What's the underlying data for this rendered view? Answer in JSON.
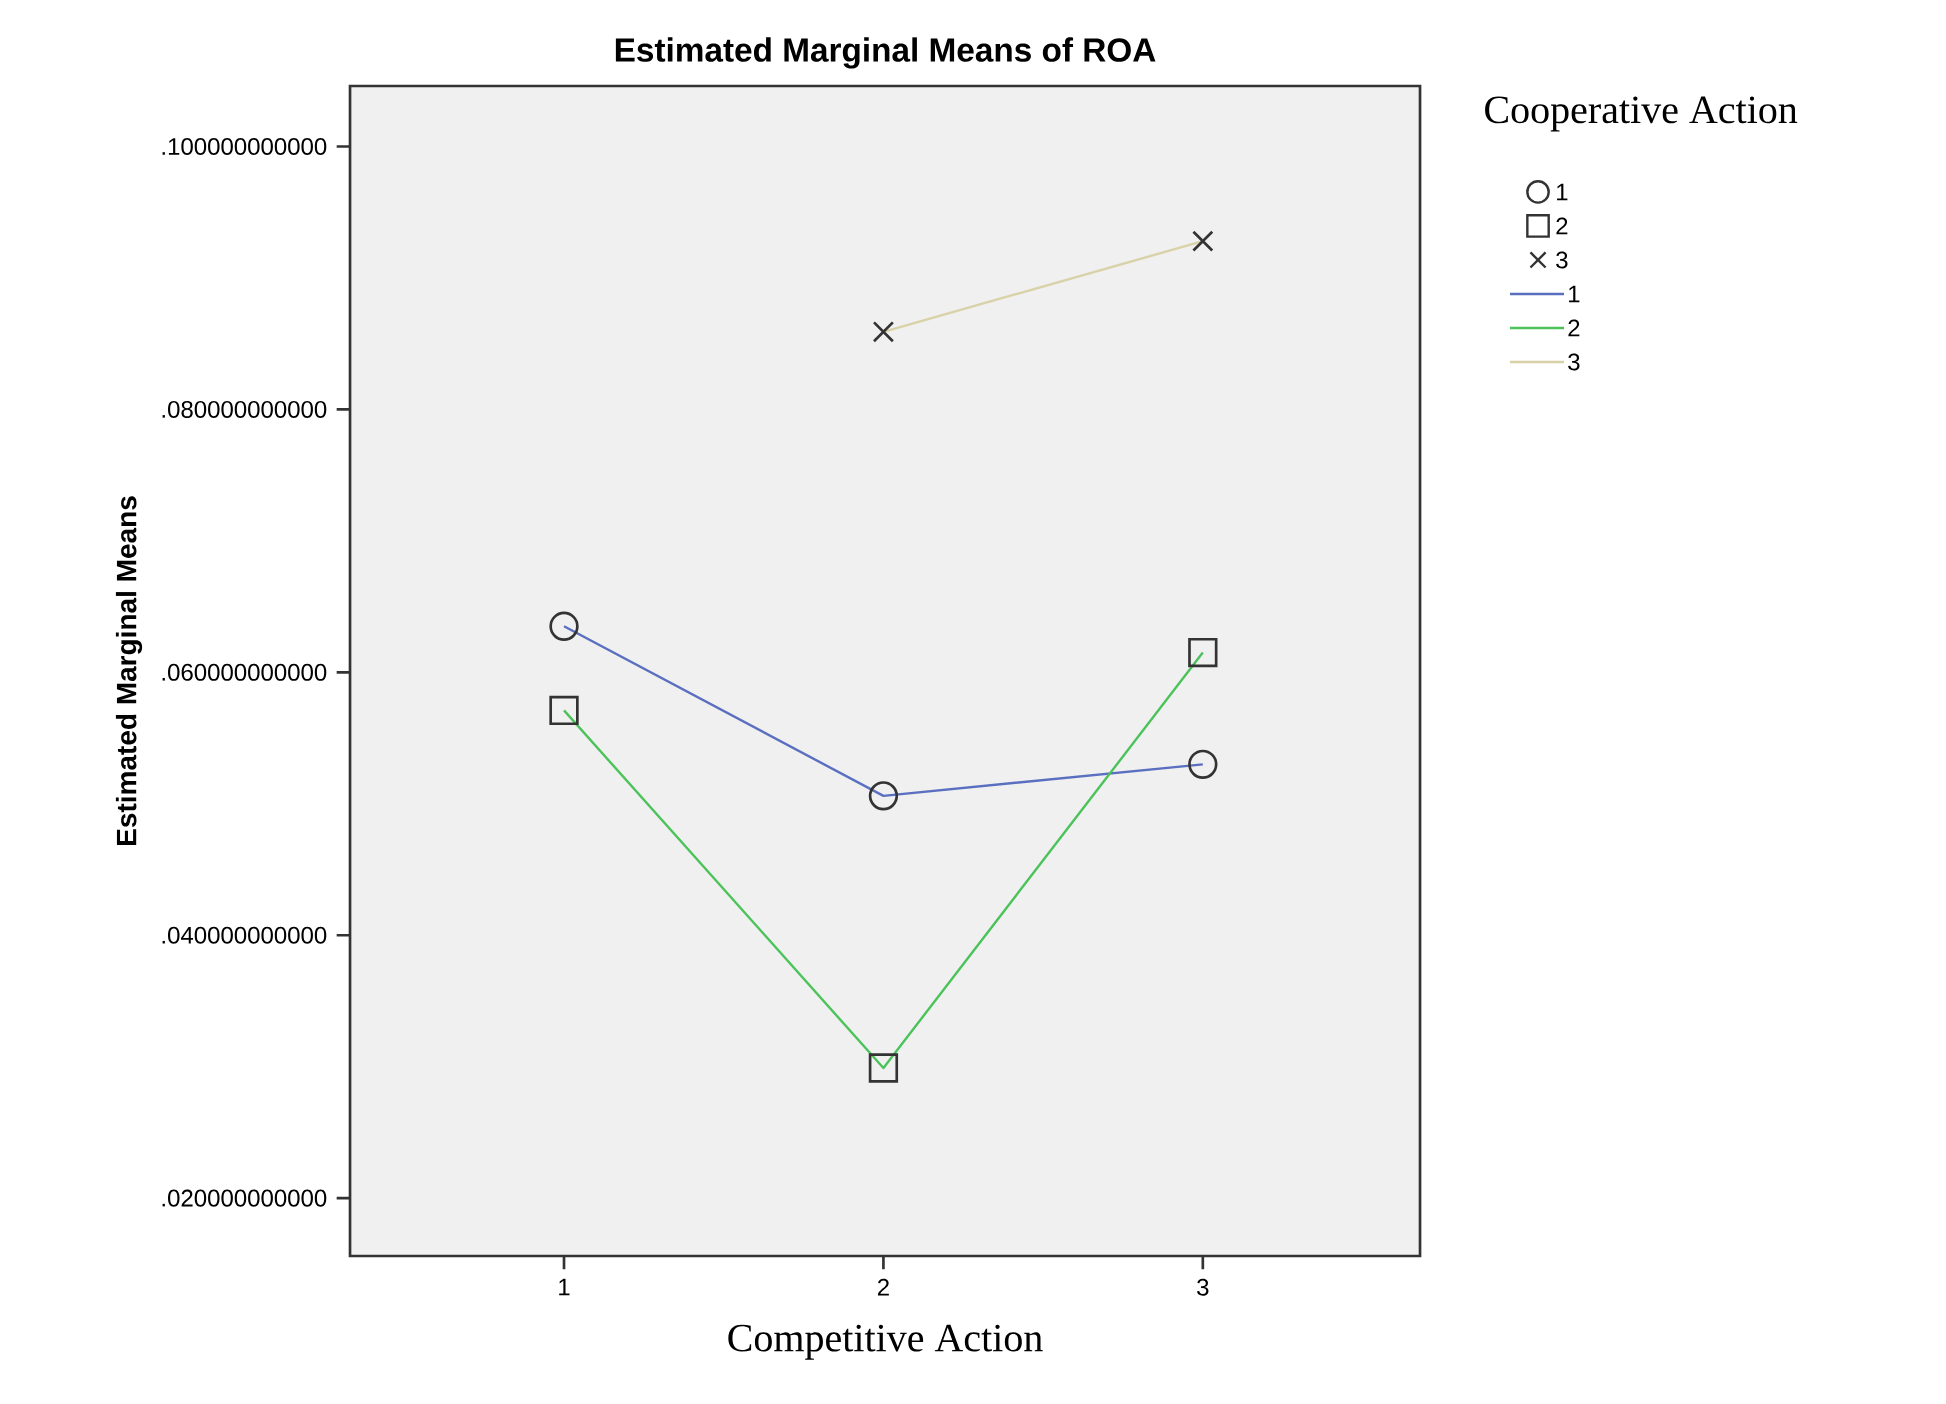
{
  "chart_data": {
    "type": "line",
    "title": "Estimated Marginal Means of ROA",
    "xlabel": "Competitive Action",
    "ylabel": "Estimated Marginal Means",
    "legend_title": "Cooperative Action",
    "legend": "right",
    "grid": false,
    "categories": [
      "1",
      "2",
      "3"
    ],
    "ylim": [
      0.0156,
      0.1046
    ],
    "yticks": [
      {
        "value": 0.02,
        "label": ".020000000000"
      },
      {
        "value": 0.04,
        "label": ".040000000000"
      },
      {
        "value": 0.06,
        "label": ".060000000000"
      },
      {
        "value": 0.08,
        "label": ".080000000000"
      },
      {
        "value": 0.1,
        "label": ".100000000000"
      }
    ],
    "series": [
      {
        "name": "1",
        "color": "#5a6fc0",
        "marker": "circle",
        "values": [
          0.0635,
          0.0506,
          0.053
        ]
      },
      {
        "name": "2",
        "color": "#4cc35a",
        "marker": "square",
        "values": [
          0.0571,
          0.0299,
          0.0615
        ]
      },
      {
        "name": "3",
        "color": "#d9d2a8",
        "marker": "cross",
        "values": [
          null,
          0.0859,
          0.0928
        ]
      }
    ]
  }
}
